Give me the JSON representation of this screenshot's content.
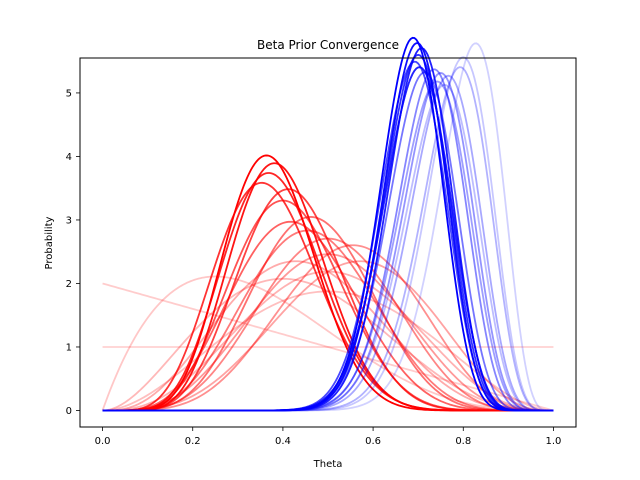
{
  "chart_data": {
    "type": "line",
    "title": "Beta Prior Convergence",
    "xlabel": "Theta",
    "ylabel": "Probability",
    "xlim": [
      -0.05,
      1.05
    ],
    "ylim": [
      -0.26,
      5.55
    ],
    "xticks": [
      0.0,
      0.2,
      0.4,
      0.6,
      0.8,
      1.0
    ],
    "xtick_labels": [
      "0.0",
      "0.2",
      "0.4",
      "0.6",
      "0.8",
      "1.0"
    ],
    "yticks": [
      0,
      1,
      2,
      3,
      4,
      5
    ],
    "ytick_labels": [
      "0",
      "1",
      "2",
      "3",
      "4",
      "5"
    ],
    "grid": false,
    "legend": "none",
    "curve_type": "beta pdf",
    "series": [
      {
        "color": "#ff0000",
        "alpha": 0.18,
        "params": [
          1,
          1
        ]
      },
      {
        "color": "#ff0000",
        "alpha": 0.2,
        "params": [
          1,
          2
        ]
      },
      {
        "color": "#ff0000",
        "alpha": 0.22,
        "params": [
          2,
          4
        ]
      },
      {
        "color": "#ff0000",
        "alpha": 0.25,
        "params": [
          3,
          3
        ]
      },
      {
        "color": "#ff0000",
        "alpha": 0.28,
        "params": [
          3,
          4
        ]
      },
      {
        "color": "#ff0000",
        "alpha": 0.3,
        "params": [
          4,
          4
        ]
      },
      {
        "color": "#ff0000",
        "alpha": 0.33,
        "params": [
          4,
          5
        ]
      },
      {
        "color": "#ff0000",
        "alpha": 0.36,
        "params": [
          5,
          4
        ]
      },
      {
        "color": "#ff0000",
        "alpha": 0.4,
        "params": [
          5,
          5
        ]
      },
      {
        "color": "#ff0000",
        "alpha": 0.44,
        "params": [
          6,
          5
        ]
      },
      {
        "color": "#ff0000",
        "alpha": 0.48,
        "params": [
          6,
          6
        ]
      },
      {
        "color": "#ff0000",
        "alpha": 0.52,
        "params": [
          6,
          7
        ]
      },
      {
        "color": "#ff0000",
        "alpha": 0.56,
        "params": [
          7,
          8
        ]
      },
      {
        "color": "#ff0000",
        "alpha": 0.62,
        "params": [
          6,
          8
        ]
      },
      {
        "color": "#ff0000",
        "alpha": 0.68,
        "params": [
          7,
          10
        ]
      },
      {
        "color": "#ff0000",
        "alpha": 0.74,
        "params": [
          8,
          11
        ]
      },
      {
        "color": "#ff0000",
        "alpha": 0.8,
        "params": [
          7,
          12
        ]
      },
      {
        "color": "#ff0000",
        "alpha": 0.86,
        "params": [
          8,
          13
        ]
      },
      {
        "color": "#ff0000",
        "alpha": 0.92,
        "params": [
          9,
          14
        ]
      },
      {
        "color": "#ff0000",
        "alpha": 1.0,
        "params": [
          9,
          15
        ]
      },
      {
        "color": "#0000ff",
        "alpha": 0.18,
        "params": [
          25,
          6
        ]
      },
      {
        "color": "#0000ff",
        "alpha": 0.22,
        "params": [
          25,
          7
        ]
      },
      {
        "color": "#0000ff",
        "alpha": 0.26,
        "params": [
          23,
          8
        ]
      },
      {
        "color": "#0000ff",
        "alpha": 0.3,
        "params": [
          24,
          7
        ]
      },
      {
        "color": "#0000ff",
        "alpha": 0.34,
        "params": [
          24,
          8
        ]
      },
      {
        "color": "#0000ff",
        "alpha": 0.38,
        "params": [
          24,
          9
        ]
      },
      {
        "color": "#0000ff",
        "alpha": 0.42,
        "params": [
          25,
          9
        ]
      },
      {
        "color": "#0000ff",
        "alpha": 0.48,
        "params": [
          26,
          10
        ]
      },
      {
        "color": "#0000ff",
        "alpha": 0.54,
        "params": [
          26,
          11
        ]
      },
      {
        "color": "#0000ff",
        "alpha": 0.6,
        "params": [
          27,
          12
        ]
      },
      {
        "color": "#0000ff",
        "alpha": 0.66,
        "params": [
          27,
          12
        ]
      },
      {
        "color": "#0000ff",
        "alpha": 0.72,
        "params": [
          28,
          13
        ]
      },
      {
        "color": "#0000ff",
        "alpha": 0.8,
        "params": [
          29,
          13
        ]
      },
      {
        "color": "#0000ff",
        "alpha": 0.88,
        "params": [
          30,
          13
        ]
      },
      {
        "color": "#0000ff",
        "alpha": 0.94,
        "params": [
          31,
          14
        ]
      },
      {
        "color": "#0000ff",
        "alpha": 1.0,
        "params": [
          32,
          15
        ]
      }
    ]
  }
}
